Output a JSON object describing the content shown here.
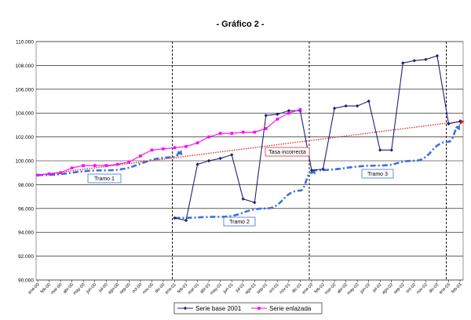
{
  "chart_data": {
    "type": "line",
    "title": "- Gráfico 2 -",
    "ylim": [
      90,
      110
    ],
    "yticks": [
      "90.000",
      "92.000",
      "94.000",
      "96.000",
      "98.000",
      "100.000",
      "102.000",
      "104.000",
      "106.000",
      "108.000",
      "110.000"
    ],
    "categories": [
      "ene-00",
      "feb-00",
      "mar-00",
      "abr-00",
      "may-00",
      "jun-00",
      "jul-00",
      "ago-00",
      "sep-00",
      "oct-00",
      "nov-00",
      "dic-00",
      "ene-01",
      "feb-01",
      "mar-01",
      "abr-01",
      "may-01",
      "jun-01",
      "jul-01",
      "ago-01",
      "sep-01",
      "oct-01",
      "nov-01",
      "dic-01",
      "ene-02",
      "feb-02",
      "mar-02",
      "abr-02",
      "may-02",
      "jun-02",
      "jul-02",
      "ago-02",
      "sep-02",
      "oct-02",
      "nov-02",
      "dic-02",
      "ene-03",
      "feb-03"
    ],
    "series": [
      {
        "name": "Serie base 2001",
        "color": "#1f1f7a",
        "marker": "diamond",
        "values": [
          null,
          null,
          null,
          null,
          null,
          null,
          null,
          null,
          null,
          null,
          null,
          null,
          95.2,
          95.0,
          99.7,
          100.0,
          100.2,
          100.5,
          96.8,
          96.5,
          103.8,
          103.9,
          104.2,
          104.2,
          99.2,
          99.3,
          104.4,
          104.6,
          104.6,
          105.0,
          100.9,
          100.9,
          108.2,
          108.4,
          108.5,
          108.8,
          103.1,
          103.3
        ]
      },
      {
        "name": "Serie enlazada",
        "color": "#ff00ff",
        "marker": "square",
        "values": [
          98.8,
          98.9,
          99.0,
          99.4,
          99.6,
          99.6,
          99.6,
          99.7,
          99.9,
          100.4,
          100.9,
          101.0,
          101.1,
          101.2,
          101.5,
          102.0,
          102.3,
          102.3,
          102.4,
          102.4,
          102.7,
          103.5,
          104.0,
          104.3,
          null,
          null,
          null,
          null,
          null,
          null,
          null,
          null,
          null,
          null,
          null,
          null,
          null,
          null
        ]
      }
    ],
    "vlines_at": [
      12,
      24,
      36
    ],
    "annotations": {
      "tramo1": "Tramo 1",
      "tramo2": "Tramo 2",
      "tramo3": "Tramo 3",
      "tasa": "Tasa incorrecta"
    },
    "curves": {
      "tramo1": [
        [
          0,
          98.8
        ],
        [
          6,
          99.2
        ],
        [
          12,
          100.3
        ],
        [
          12.6,
          100.9
        ]
      ],
      "tramo2": [
        [
          12,
          95.2
        ],
        [
          16,
          95.3
        ],
        [
          20,
          96.0
        ],
        [
          23,
          97.5
        ],
        [
          24,
          99.0
        ],
        [
          24.3,
          99.3
        ]
      ],
      "tramo3": [
        [
          24,
          99.2
        ],
        [
          30,
          99.6
        ],
        [
          33,
          100.0
        ],
        [
          36,
          101.6
        ],
        [
          37,
          103.0
        ]
      ],
      "tasa": [
        [
          0,
          98.8
        ],
        [
          37,
          103.3
        ]
      ]
    },
    "legend_position": "bottom",
    "grid": true
  }
}
